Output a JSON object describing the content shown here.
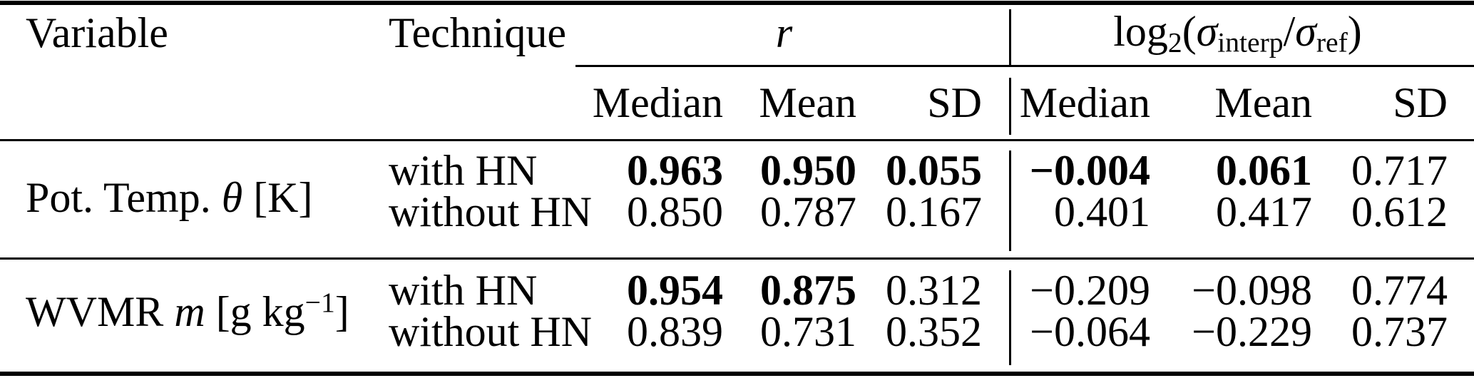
{
  "colors": {
    "text": "#000000",
    "background": "#ffffff",
    "rule": "#000000"
  },
  "table": {
    "header": {
      "variable": "Variable",
      "technique": "Technique",
      "r_group": [
        {
          "t": "r",
          "s": "i"
        }
      ],
      "log_group": [
        {
          "t": "log"
        },
        {
          "t": "2",
          "s": "sub"
        },
        {
          "t": "("
        },
        {
          "t": "σ",
          "s": "i"
        },
        {
          "t": "interp",
          "s": "sub"
        },
        {
          "t": "/"
        },
        {
          "t": "σ",
          "s": "i"
        },
        {
          "t": "ref",
          "s": "sub"
        },
        {
          "t": ")"
        }
      ],
      "subheaders": [
        "Median",
        "Mean",
        "SD",
        "Median",
        "Mean",
        "SD"
      ]
    },
    "groups": [
      {
        "variable": [
          {
            "t": "Pot. Temp. "
          },
          {
            "t": "θ",
            "s": "i"
          },
          {
            "t": " [K]"
          }
        ],
        "rows": [
          {
            "technique": "with HN",
            "values": [
              {
                "v": "0.963",
                "b": true
              },
              {
                "v": "0.950",
                "b": true
              },
              {
                "v": "0.055",
                "b": true
              },
              {
                "v": "−0.004",
                "b": true
              },
              {
                "v": "0.061",
                "b": true
              },
              {
                "v": "0.717",
                "b": false
              }
            ]
          },
          {
            "technique": "without HN",
            "values": [
              {
                "v": "0.850",
                "b": false
              },
              {
                "v": "0.787",
                "b": false
              },
              {
                "v": "0.167",
                "b": false
              },
              {
                "v": "0.401",
                "b": false
              },
              {
                "v": "0.417",
                "b": false
              },
              {
                "v": "0.612",
                "b": false
              }
            ]
          }
        ]
      },
      {
        "variable": [
          {
            "t": "WVMR "
          },
          {
            "t": "m",
            "s": "i"
          },
          {
            "t": " [g kg"
          },
          {
            "t": "−1",
            "s": "sup"
          },
          {
            "t": "]"
          }
        ],
        "rows": [
          {
            "technique": "with HN",
            "values": [
              {
                "v": "0.954",
                "b": true
              },
              {
                "v": "0.875",
                "b": true
              },
              {
                "v": "0.312",
                "b": false
              },
              {
                "v": "−0.209",
                "b": false
              },
              {
                "v": "−0.098",
                "b": false
              },
              {
                "v": "0.774",
                "b": false
              }
            ]
          },
          {
            "technique": "without HN",
            "values": [
              {
                "v": "0.839",
                "b": false
              },
              {
                "v": "0.731",
                "b": false
              },
              {
                "v": "0.352",
                "b": false
              },
              {
                "v": "−0.064",
                "b": false
              },
              {
                "v": "−0.229",
                "b": false
              },
              {
                "v": "0.737",
                "b": false
              }
            ]
          }
        ]
      }
    ]
  }
}
